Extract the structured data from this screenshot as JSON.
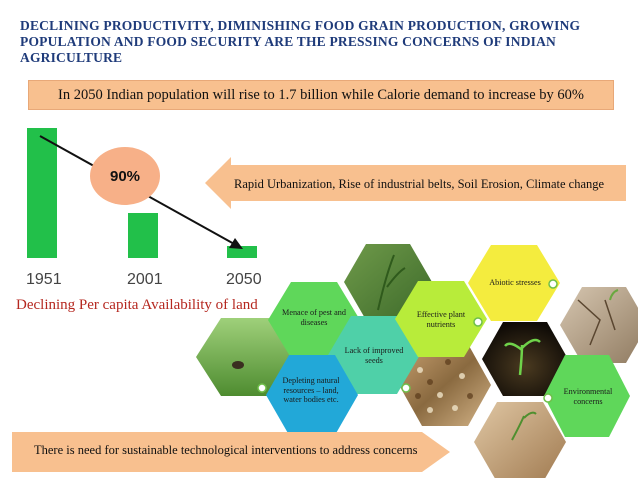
{
  "title": "DECLINING PRODUCTIVITY, DIMINISHING FOOD GRAIN PRODUCTION, GROWING POPULATION AND FOOD SECURITY ARE THE PRESSING CONCERNS OF INDIAN AGRICULTURE",
  "top_banner": "In 2050 Indian population will rise to 1.7 billion while Calorie demand to increase by 60%",
  "land_chart": {
    "years": [
      "1951",
      "2001",
      "2050"
    ],
    "percent_label": "90%",
    "caption": "Declining Per capita Availability of land"
  },
  "arrow_banner": "Rapid Urbanization, Rise of industrial belts, Soil Erosion, Climate change",
  "hexagons": {
    "pests": "Menace of pest and diseases",
    "seeds": "Lack of improved seeds",
    "nutrients": "Effective plant nutrients",
    "abiotic": "Abiotic stresses",
    "depleting": "Depleting natural resources – land, water bodies etc.",
    "environmental": "Environmental concerns"
  },
  "bottom_banner": "There is need for sustainable technological interventions to address concerns",
  "colors": {
    "title": "#1f3b7a",
    "banner": "#f8c08f",
    "bar": "#22c04a",
    "hex_green": "#5fd75a",
    "hex_teal": "#4fd0a8",
    "hex_lime": "#b8ec3a",
    "hex_yellow": "#f4ec3e",
    "caption": "#b5271f"
  }
}
